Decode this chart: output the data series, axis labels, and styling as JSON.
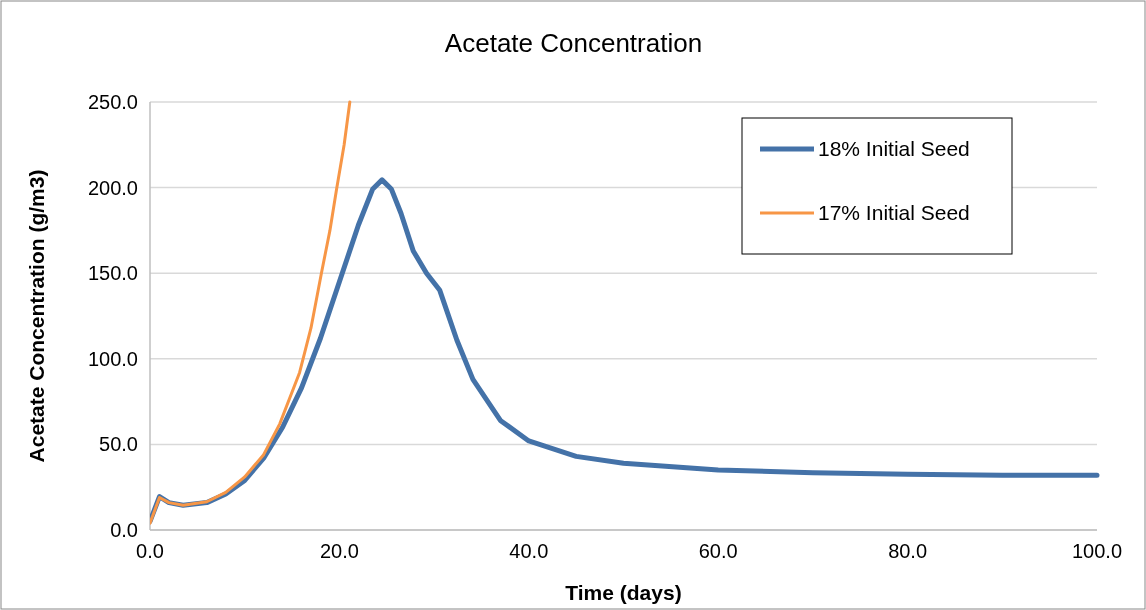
{
  "chart_data": {
    "type": "line",
    "title": "Acetate Concentration",
    "xlabel": "Time (days)",
    "ylabel": "Acetate Concentration (g/m3)",
    "xlim": [
      0,
      100
    ],
    "xticks": [
      {
        "value": 0,
        "label": "0.0"
      },
      {
        "value": 20,
        "label": "20.0"
      },
      {
        "value": 40,
        "label": "40.0"
      },
      {
        "value": 60,
        "label": "60.0"
      },
      {
        "value": 80,
        "label": "80.0"
      },
      {
        "value": 100,
        "label": "100.0"
      }
    ],
    "ylim": [
      0,
      250
    ],
    "yticks": [
      {
        "value": 0,
        "label": "0.0"
      },
      {
        "value": 50,
        "label": "50.0"
      },
      {
        "value": 100,
        "label": "100.0"
      },
      {
        "value": 150,
        "label": "150.0"
      },
      {
        "value": 200,
        "label": "200.0"
      },
      {
        "value": 250,
        "label": "250.0"
      }
    ],
    "grid": "y",
    "legend": "top right",
    "marker": "none",
    "line_style": "solid",
    "series": [
      {
        "name": "18% Initial Seed",
        "color": "#4472a8",
        "x": [
          0,
          1,
          2,
          3.5,
          6,
          8,
          10,
          12,
          14,
          16,
          18,
          20,
          22,
          23.5,
          24.5,
          25.5,
          26.5,
          27.8,
          29.2,
          30.6,
          32.4,
          34.1,
          37,
          40,
          45,
          50,
          60,
          70,
          80,
          90,
          100
        ],
        "values": [
          5,
          19.5,
          16,
          14.5,
          16,
          21,
          29,
          42,
          60,
          83,
          112,
          145,
          178,
          199,
          204.5,
          199,
          185,
          163,
          150,
          140,
          111,
          88,
          64,
          52,
          43,
          39,
          35,
          33.5,
          32.5,
          32,
          32
        ]
      },
      {
        "name": "17% Initial Seed",
        "color": "#f79646",
        "x": [
          0,
          1,
          2,
          3.5,
          6,
          8,
          10,
          12,
          13.7,
          15.8,
          17,
          18.1,
          19,
          19.7,
          20.5,
          21.1
        ],
        "values": [
          4,
          19,
          16,
          14.5,
          16.5,
          22,
          31,
          44,
          62,
          92,
          118,
          150,
          175,
          199,
          225,
          250
        ]
      }
    ]
  }
}
